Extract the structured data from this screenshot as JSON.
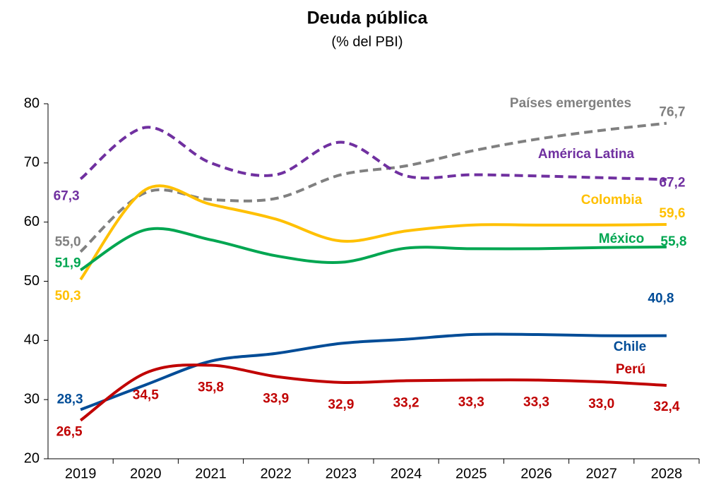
{
  "chart_data": {
    "type": "line",
    "title": "Deuda pública",
    "subtitle": "(% del PBI)",
    "categories": [
      "2019",
      "2020",
      "2021",
      "2022",
      "2023",
      "2024",
      "2025",
      "2026",
      "2027",
      "2028"
    ],
    "ylim": [
      20,
      80
    ],
    "yticks": [
      20,
      30,
      40,
      50,
      60,
      70,
      80
    ],
    "series": [
      {
        "name": "Países emergentes",
        "color": "#808080",
        "dashed": true,
        "values": [
          55.0,
          65.0,
          63.8,
          64.0,
          68.0,
          69.5,
          72.0,
          74.0,
          75.5,
          76.7
        ],
        "value_labels": [
          "55,0",
          null,
          null,
          null,
          null,
          null,
          null,
          null,
          null,
          "76,7"
        ]
      },
      {
        "name": "América Latina",
        "color": "#7030A0",
        "dashed": true,
        "values": [
          67.3,
          76.0,
          70.0,
          68.0,
          73.5,
          67.8,
          68.0,
          67.8,
          67.5,
          67.2
        ],
        "value_labels": [
          "67,3",
          null,
          null,
          null,
          null,
          null,
          null,
          null,
          null,
          "67,2"
        ]
      },
      {
        "name": "Colombia",
        "color": "#FFC000",
        "dashed": false,
        "values": [
          50.3,
          65.5,
          63.0,
          60.5,
          56.8,
          58.5,
          59.5,
          59.5,
          59.5,
          59.6
        ],
        "value_labels": [
          "50,3",
          null,
          null,
          null,
          null,
          null,
          null,
          null,
          null,
          "59,6"
        ]
      },
      {
        "name": "México",
        "color": "#00A651",
        "dashed": false,
        "values": [
          51.9,
          58.7,
          57.0,
          54.3,
          53.2,
          55.6,
          55.5,
          55.5,
          55.7,
          55.8
        ],
        "value_labels": [
          "51,9",
          null,
          null,
          null,
          null,
          null,
          null,
          null,
          null,
          "55,8"
        ]
      },
      {
        "name": "Chile",
        "color": "#004C97",
        "dashed": false,
        "values": [
          28.3,
          32.5,
          36.5,
          37.8,
          39.5,
          40.2,
          41.0,
          41.0,
          40.8,
          40.8
        ],
        "value_labels": [
          "28,3",
          null,
          null,
          null,
          null,
          null,
          null,
          null,
          null,
          "40,8"
        ]
      },
      {
        "name": "Perú",
        "color": "#C00000",
        "dashed": false,
        "values": [
          26.5,
          34.5,
          35.8,
          33.9,
          32.9,
          33.2,
          33.3,
          33.3,
          33.0,
          32.4
        ],
        "value_labels": [
          "26,5",
          "34,5",
          "35,8",
          "33,9",
          "32,9",
          "33,2",
          "33,3",
          "33,3",
          "33,0",
          "32,4"
        ]
      }
    ]
  }
}
